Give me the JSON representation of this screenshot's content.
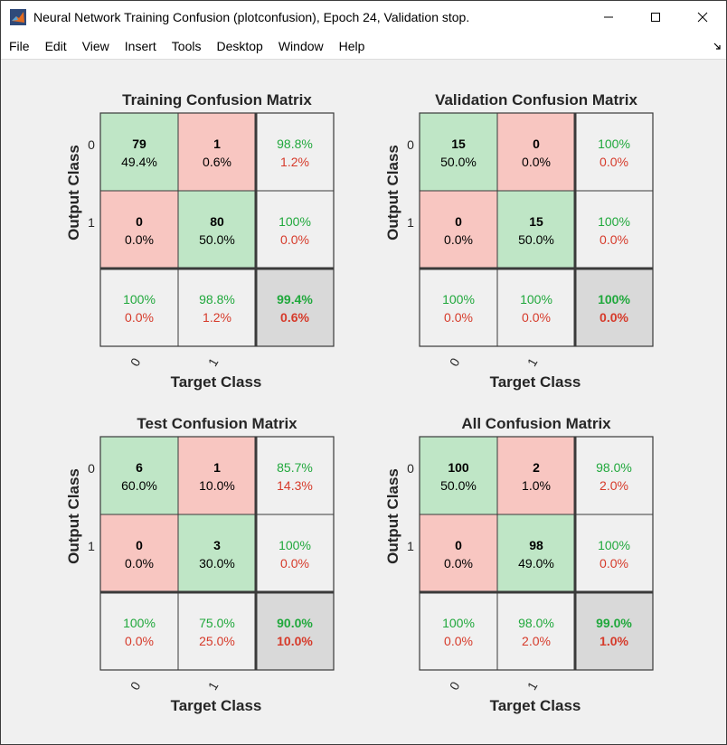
{
  "window": {
    "title": "Neural Network Training Confusion (plotconfusion), Epoch 24, Validation stop."
  },
  "menu": [
    "File",
    "Edit",
    "View",
    "Insert",
    "Tools",
    "Desktop",
    "Window",
    "Help"
  ],
  "colors": {
    "correct_cell": "#bfe6c6",
    "wrong_cell": "#f8c6c1",
    "summary_cell": "#f0f0f0",
    "total_cell": "#d9d9d9",
    "green_text": "#20a83c",
    "red_text": "#d63a2a",
    "dark_text": "#000000"
  },
  "chart_data": [
    {
      "type": "table",
      "title": "Training Confusion Matrix",
      "xlabel": "Target Class",
      "ylabel": "Output Class",
      "xticks": [
        "0",
        "1"
      ],
      "yticks": [
        "0",
        "1"
      ],
      "counts": [
        [
          79,
          1
        ],
        [
          0,
          80
        ]
      ],
      "count_percents": [
        [
          "49.4%",
          "0.6%"
        ],
        [
          "0.0%",
          "50.0%"
        ]
      ],
      "row_summary": [
        [
          "98.8%",
          "1.2%"
        ],
        [
          "100%",
          "0.0%"
        ]
      ],
      "col_summary": [
        [
          "100%",
          "0.0%"
        ],
        [
          "98.8%",
          "1.2%"
        ]
      ],
      "total": [
        "99.4%",
        "0.6%"
      ]
    },
    {
      "type": "table",
      "title": "Validation Confusion Matrix",
      "xlabel": "Target Class",
      "ylabel": "Output Class",
      "xticks": [
        "0",
        "1"
      ],
      "yticks": [
        "0",
        "1"
      ],
      "counts": [
        [
          15,
          0
        ],
        [
          0,
          15
        ]
      ],
      "count_percents": [
        [
          "50.0%",
          "0.0%"
        ],
        [
          "0.0%",
          "50.0%"
        ]
      ],
      "row_summary": [
        [
          "100%",
          "0.0%"
        ],
        [
          "100%",
          "0.0%"
        ]
      ],
      "col_summary": [
        [
          "100%",
          "0.0%"
        ],
        [
          "100%",
          "0.0%"
        ]
      ],
      "total": [
        "100%",
        "0.0%"
      ]
    },
    {
      "type": "table",
      "title": "Test Confusion Matrix",
      "xlabel": "Target Class",
      "ylabel": "Output Class",
      "xticks": [
        "0",
        "1"
      ],
      "yticks": [
        "0",
        "1"
      ],
      "counts": [
        [
          6,
          1
        ],
        [
          0,
          3
        ]
      ],
      "count_percents": [
        [
          "60.0%",
          "10.0%"
        ],
        [
          "0.0%",
          "30.0%"
        ]
      ],
      "row_summary": [
        [
          "85.7%",
          "14.3%"
        ],
        [
          "100%",
          "0.0%"
        ]
      ],
      "col_summary": [
        [
          "100%",
          "0.0%"
        ],
        [
          "75.0%",
          "25.0%"
        ]
      ],
      "total": [
        "90.0%",
        "10.0%"
      ]
    },
    {
      "type": "table",
      "title": "All Confusion Matrix",
      "xlabel": "Target Class",
      "ylabel": "Output Class",
      "xticks": [
        "0",
        "1"
      ],
      "yticks": [
        "0",
        "1"
      ],
      "counts": [
        [
          100,
          2
        ],
        [
          0,
          98
        ]
      ],
      "count_percents": [
        [
          "50.0%",
          "1.0%"
        ],
        [
          "0.0%",
          "49.0%"
        ]
      ],
      "row_summary": [
        [
          "98.0%",
          "2.0%"
        ],
        [
          "100%",
          "0.0%"
        ]
      ],
      "col_summary": [
        [
          "100%",
          "0.0%"
        ],
        [
          "98.0%",
          "2.0%"
        ]
      ],
      "total": [
        "99.0%",
        "1.0%"
      ]
    }
  ]
}
